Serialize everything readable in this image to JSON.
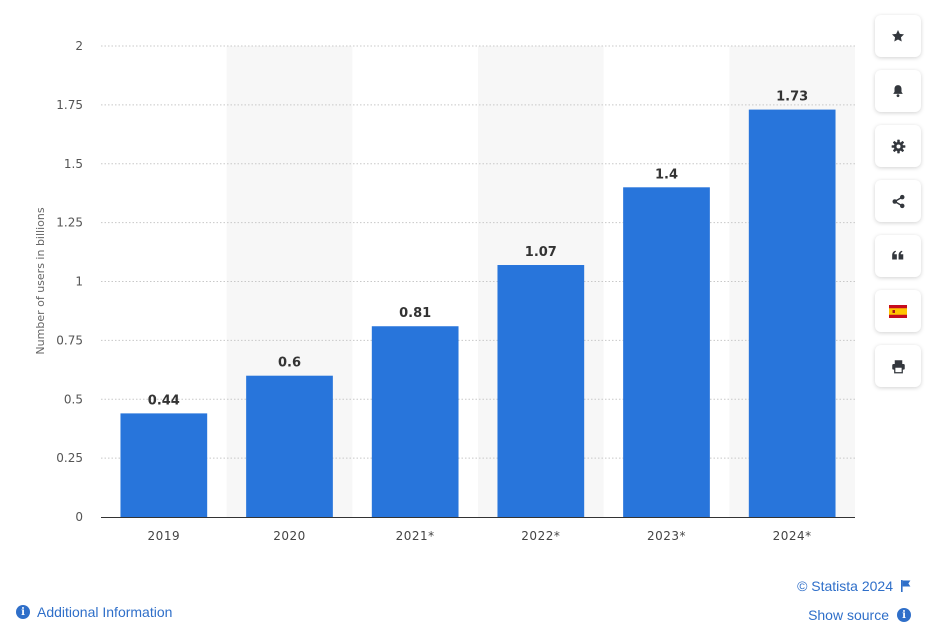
{
  "chart_data": {
    "type": "bar",
    "categories": [
      "2019",
      "2020",
      "2021*",
      "2022*",
      "2023*",
      "2024*"
    ],
    "values": [
      0.44,
      0.6,
      0.81,
      1.07,
      1.4,
      1.73
    ],
    "value_labels": [
      "0.44",
      "0.6",
      "0.81",
      "1.07",
      "1.4",
      "1.73"
    ],
    "title": "",
    "xlabel": "",
    "ylabel": "Number of users in billions",
    "ylim": [
      0,
      2
    ],
    "yticks": [
      0,
      0.25,
      0.5,
      0.75,
      1,
      1.25,
      1.5,
      1.75,
      2
    ],
    "ytick_labels": [
      "0",
      "0.25",
      "0.5",
      "0.75",
      "1",
      "1.25",
      "1.5",
      "1.75",
      "2"
    ],
    "grid": true,
    "bar_color": "#2875db",
    "alternate_band_color": "#f7f7f7"
  },
  "toolbar": [
    {
      "name": "favorite-button",
      "icon": "star-icon"
    },
    {
      "name": "notification-button",
      "icon": "bell-icon"
    },
    {
      "name": "settings-button",
      "icon": "gear-icon"
    },
    {
      "name": "share-button",
      "icon": "share-icon"
    },
    {
      "name": "cite-button",
      "icon": "quote-icon"
    },
    {
      "name": "language-button",
      "icon": "spain-flag-icon"
    },
    {
      "name": "print-button",
      "icon": "printer-icon"
    }
  ],
  "footer": {
    "copyright": "© Statista 2024",
    "show_source": "Show source",
    "additional_info": "Additional Information"
  },
  "colors": {
    "accent": "#2f6fc9",
    "icon": "#33373d"
  }
}
